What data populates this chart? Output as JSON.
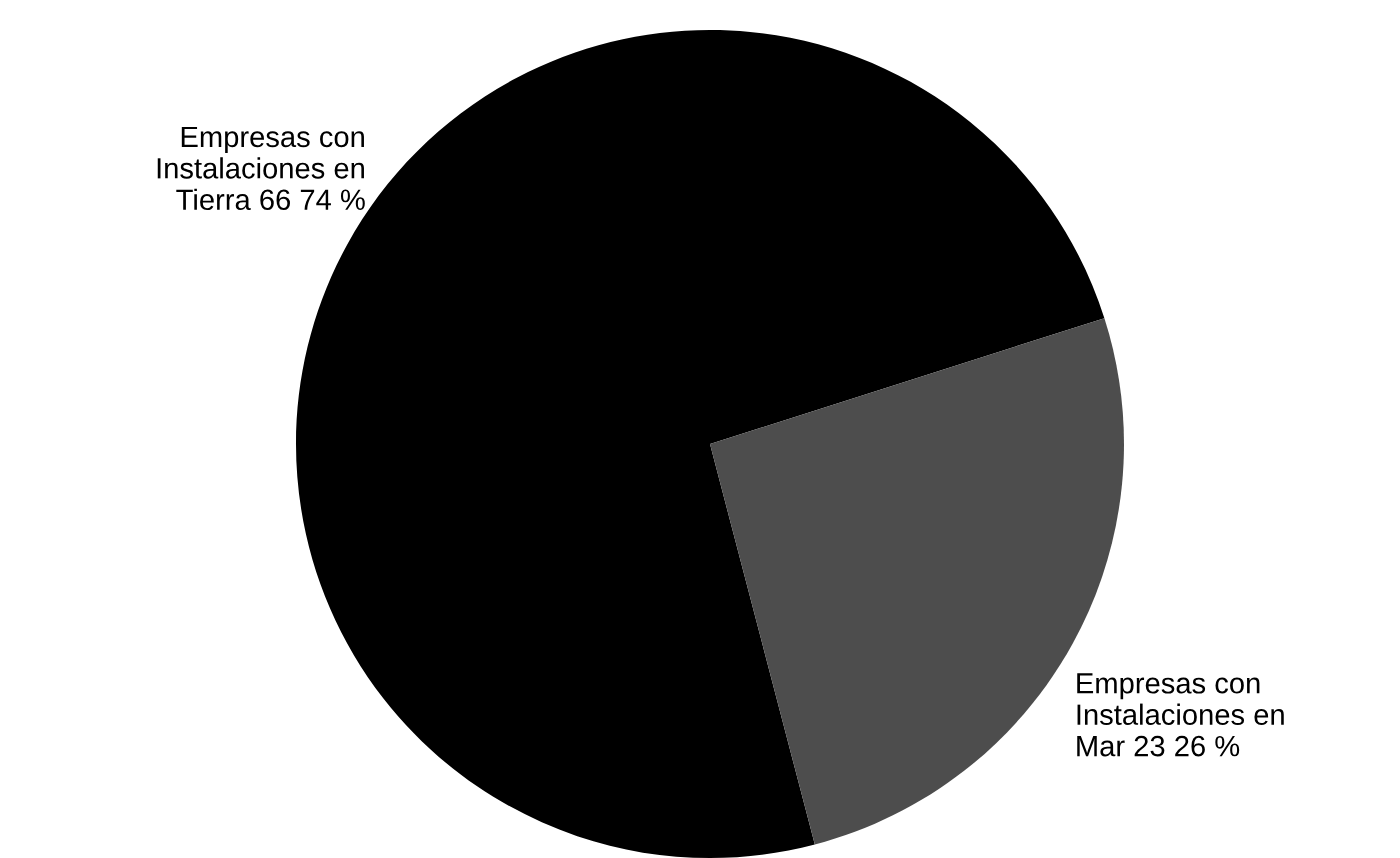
{
  "chart_data": {
    "type": "pie",
    "categories": [
      "Empresas con\nInstalaciones en\nTierra",
      "Empresas con\nInstalaciones en\nMar"
    ],
    "values": [
      66,
      23
    ],
    "value_labels": [
      "66 74 %",
      "23 26 %"
    ],
    "colors": [
      "#000000",
      "#4d4d4d"
    ]
  }
}
